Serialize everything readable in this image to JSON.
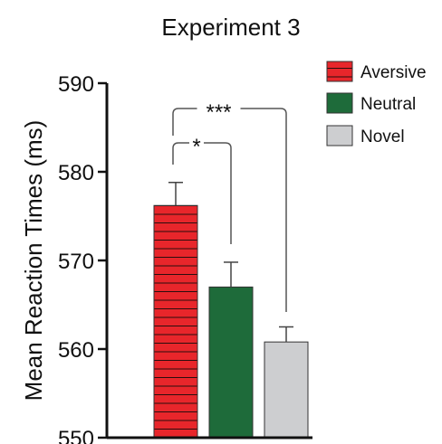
{
  "chart_data": {
    "type": "bar",
    "title": "Experiment 3",
    "ylabel": "Mean Reaction Times (ms)",
    "xlabel": "",
    "ylim": [
      550,
      590
    ],
    "yticks": [
      550,
      560,
      570,
      580,
      590
    ],
    "grid": false,
    "legend_position": "top-right",
    "series": [
      {
        "name": "Aversive",
        "value": 576.2,
        "error": 2.6,
        "color": "#e8262b",
        "pattern": "horizontal-stripes"
      },
      {
        "name": "Neutral",
        "value": 567.0,
        "error": 2.8,
        "color": "#1e6b3a",
        "pattern": "solid"
      },
      {
        "name": "Novel",
        "value": 560.8,
        "error": 1.7,
        "color": "#cdced0",
        "pattern": "solid"
      }
    ],
    "significance": [
      {
        "from": 0,
        "to": 1,
        "label": "*"
      },
      {
        "from": 0,
        "to": 2,
        "label": "***"
      }
    ]
  }
}
